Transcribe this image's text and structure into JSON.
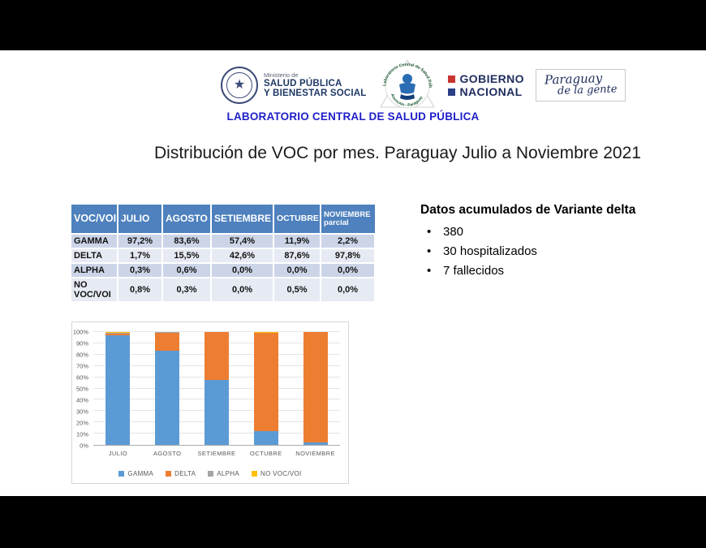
{
  "header": {
    "ministry": {
      "line1": "Ministerio de",
      "line2": "SALUD PÚBLICA",
      "line3": "Y BIENESTAR SOCIAL"
    },
    "lab_logo": {
      "arc_top": "Laboratorio Central de Salud Pública",
      "arc_bottom": "Asunción - Paraguay"
    },
    "gobierno": {
      "line1": "GOBIERNO",
      "line2": "NACIONAL"
    },
    "paraguay": {
      "line1": "Paraguay",
      "line2": "de la gente"
    },
    "lab_title": "LABORATORIO CENTRAL DE SALUD PÚBLICA"
  },
  "title": "Distribución de VOC por mes. Paraguay Julio a Noviembre 2021",
  "table": {
    "columns": [
      "VOC/VOI",
      "JULIO",
      "AGOSTO",
      "SETIEMBRE",
      "OCTUBRE",
      "NOVIEMBRE\nparcial"
    ],
    "rows": [
      {
        "label": "GAMMA",
        "values": [
          "97,2%",
          "83,6%",
          "57,4%",
          "11,9%",
          "2,2%"
        ]
      },
      {
        "label": "DELTA",
        "values": [
          "1,7%",
          "15,5%",
          "42,6%",
          "87,6%",
          "97,8%"
        ]
      },
      {
        "label": "ALPHA",
        "values": [
          "0,3%",
          "0,6%",
          "0,0%",
          "0,0%",
          "0,0%"
        ]
      },
      {
        "label": "NO VOC/VOI",
        "values": [
          "0,8%",
          "0,3%",
          "0,0%",
          "0,5%",
          "0,0%"
        ]
      }
    ]
  },
  "delta_info": {
    "heading": "Datos acumulados de Variante delta",
    "bullets": [
      "380",
      "30 hospitalizados",
      "7 fallecidos"
    ]
  },
  "chart_data": {
    "type": "bar",
    "stacked": true,
    "percent_stacked": true,
    "categories": [
      "JULIO",
      "AGOSTO",
      "SETIEMBRE",
      "OCTUBRE",
      "NOVIEMBRE"
    ],
    "series": [
      {
        "name": "GAMMA",
        "color": "#5b9bd5",
        "values": [
          97.2,
          83.6,
          57.4,
          11.9,
          2.2
        ]
      },
      {
        "name": "DELTA",
        "color": "#ed7d31",
        "values": [
          1.7,
          15.5,
          42.6,
          87.6,
          97.8
        ]
      },
      {
        "name": "ALPHA",
        "color": "#a5a5a5",
        "values": [
          0.3,
          0.6,
          0.0,
          0.0,
          0.0
        ]
      },
      {
        "name": "NO VOC/VOI",
        "color": "#ffc000",
        "values": [
          0.8,
          0.3,
          0.0,
          0.5,
          0.0
        ]
      }
    ],
    "title": "",
    "xlabel": "",
    "ylabel": "",
    "ylim": [
      0,
      100
    ],
    "ytick_step": 10,
    "ytick_labels": [
      "0%",
      "10%",
      "20%",
      "30%",
      "40%",
      "50%",
      "60%",
      "70%",
      "80%",
      "90%",
      "100%"
    ],
    "grid": true,
    "legend_position": "bottom"
  },
  "colors": {
    "table_header": "#4e81bd",
    "table_band_dark": "#ccd5e8",
    "table_band_light": "#e6eaf3",
    "lab_title_blue": "#1f1fc8",
    "gobierno_red": "#c9342f",
    "gobierno_blue": "#2b3f87"
  }
}
